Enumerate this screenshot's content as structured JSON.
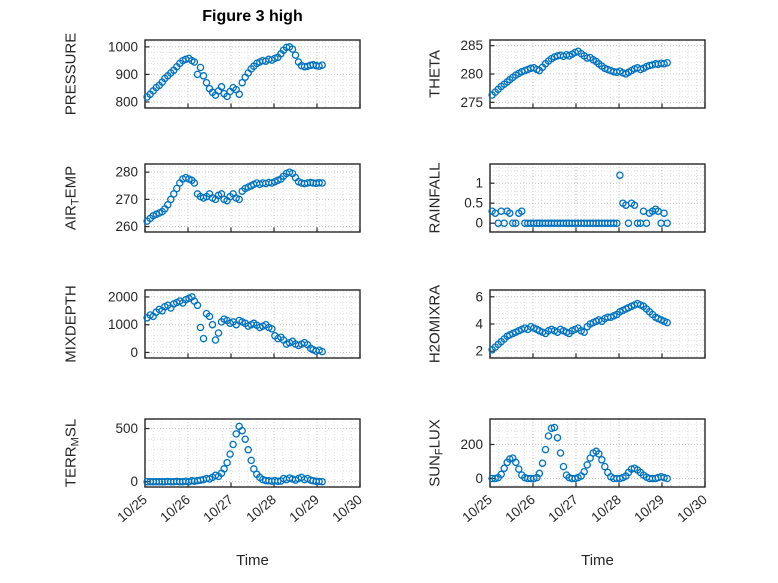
{
  "chart_data": {
    "type": "scatter",
    "title": "Figure 3 high",
    "xlabel": "Time",
    "marker": "open-circle",
    "colors": {
      "marker": "#0072BD",
      "axis": "#262626",
      "major_grid": "#c4c4c4",
      "minor_grid": "#e2e2e2",
      "tick_label": "#262626"
    },
    "xlim": [
      0,
      5
    ],
    "xticks": [
      0,
      1,
      2,
      3,
      4,
      5
    ],
    "xtick_labels": [
      "10/25",
      "10/26",
      "10/27",
      "10/28",
      "10/29",
      "10/30"
    ],
    "x_days": [
      0.05,
      0.12,
      0.19,
      0.26,
      0.33,
      0.4,
      0.46,
      0.53,
      0.6,
      0.67,
      0.74,
      0.81,
      0.88,
      0.95,
      1.02,
      1.09,
      1.15,
      1.22,
      1.29,
      1.36,
      1.43,
      1.5,
      1.57,
      1.64,
      1.71,
      1.78,
      1.84,
      1.91,
      1.98,
      2.05,
      2.12,
      2.19,
      2.26,
      2.33,
      2.4,
      2.47,
      2.53,
      2.6,
      2.67,
      2.74,
      2.81,
      2.88,
      2.95,
      3.02,
      3.09,
      3.16,
      3.22,
      3.29,
      3.36,
      3.43,
      3.5,
      3.57,
      3.64,
      3.71,
      3.78,
      3.85,
      3.91,
      3.98,
      4.05,
      4.12
    ],
    "subplots": [
      {
        "name": "PRESSURE",
        "ylabel": {
          "pre": "PRESSURE",
          "sub": "",
          "post": ""
        },
        "yticks": [
          800,
          900,
          1000
        ],
        "ylim": [
          778,
          1025
        ],
        "values": [
          818,
          828,
          840,
          852,
          860,
          872,
          885,
          895,
          905,
          915,
          928,
          940,
          950,
          955,
          958,
          950,
          945,
          900,
          925,
          895,
          870,
          848,
          835,
          825,
          840,
          855,
          830,
          820,
          838,
          852,
          845,
          828,
          870,
          890,
          905,
          920,
          930,
          940,
          945,
          950,
          948,
          955,
          952,
          958,
          962,
          975,
          988,
          998,
          1000,
          992,
          970,
          945,
          932,
          928,
          930,
          933,
          935,
          932,
          930,
          934
        ]
      },
      {
        "name": "THETA",
        "ylabel": {
          "pre": "THETA",
          "sub": "",
          "post": ""
        },
        "yticks": [
          275,
          280,
          285
        ],
        "ylim": [
          274,
          286
        ],
        "values": [
          276.3,
          276.8,
          277.3,
          277.8,
          278.2,
          278.6,
          279.0,
          279.4,
          279.8,
          280.1,
          280.4,
          280.6,
          280.8,
          281.0,
          281.1,
          280.8,
          280.6,
          281.2,
          281.8,
          282.3,
          282.7,
          283.0,
          283.2,
          283.3,
          283.1,
          283.4,
          283.2,
          283.5,
          283.8,
          284.0,
          283.6,
          283.2,
          282.8,
          282.9,
          282.5,
          282.2,
          281.8,
          281.4,
          281.0,
          280.8,
          280.6,
          280.4,
          280.3,
          280.5,
          280.2,
          280.0,
          280.3,
          280.6,
          280.9,
          281.1,
          280.8,
          281.0,
          281.3,
          281.5,
          281.6,
          281.8,
          281.7,
          281.9,
          281.8,
          282.0
        ]
      },
      {
        "name": "AIR_TEMP",
        "ylabel": {
          "pre": "AIR",
          "sub": "T",
          "post": "EMP"
        },
        "yticks": [
          260,
          270,
          280
        ],
        "ylim": [
          258,
          283
        ],
        "values": [
          262,
          263,
          264,
          264.5,
          265,
          265.5,
          266.5,
          268,
          270,
          272,
          274,
          276,
          277.5,
          278,
          277.5,
          277,
          276,
          272,
          271,
          270.5,
          271,
          272,
          270.5,
          270,
          271.5,
          272,
          270,
          269.5,
          271,
          272,
          270.5,
          270,
          273,
          274,
          274.5,
          275,
          275.5,
          276,
          275.5,
          276,
          275.8,
          276.2,
          276,
          276.5,
          277,
          277.5,
          278.5,
          279.5,
          280,
          279.5,
          278,
          276.5,
          276,
          275.8,
          276,
          276.2,
          276,
          275.9,
          276.1,
          276
        ]
      },
      {
        "name": "RAINFALL",
        "ylabel": {
          "pre": "RAINFALL",
          "sub": "",
          "post": ""
        },
        "yticks": [
          0,
          0.5,
          1
        ],
        "ylim": [
          -0.22,
          1.48
        ],
        "values": [
          0.3,
          0.25,
          0,
          0.3,
          0,
          0.3,
          0.25,
          0,
          0,
          0.25,
          0.3,
          0,
          0,
          0,
          0,
          0,
          0,
          0,
          0,
          0,
          0,
          0,
          0,
          0,
          0,
          0,
          0,
          0,
          0,
          0,
          0,
          0,
          0,
          0,
          0,
          0,
          0,
          0,
          0,
          0,
          0,
          0,
          0,
          1.2,
          0.5,
          0.45,
          0,
          0.5,
          0.45,
          0,
          0,
          0.3,
          0,
          0.25,
          0.3,
          0.35,
          0.3,
          0,
          0.25,
          0
        ]
      },
      {
        "name": "MIXDEPTH",
        "ylabel": {
          "pre": "MIXDEPTH",
          "sub": "",
          "post": ""
        },
        "yticks": [
          0,
          1000,
          2000
        ],
        "ylim": [
          -200,
          2250
        ],
        "values": [
          1250,
          1350,
          1300,
          1450,
          1550,
          1500,
          1650,
          1700,
          1600,
          1750,
          1800,
          1850,
          1780,
          1900,
          1950,
          2000,
          1850,
          1700,
          900,
          500,
          1400,
          1300,
          1000,
          450,
          700,
          1100,
          1200,
          1150,
          1050,
          1100,
          1000,
          1150,
          1100,
          1050,
          950,
          1000,
          1050,
          980,
          900,
          950,
          1000,
          900,
          850,
          600,
          500,
          550,
          450,
          300,
          350,
          400,
          300,
          250,
          300,
          350,
          280,
          150,
          100,
          50,
          80,
          30
        ]
      },
      {
        "name": "H2OMIXRA",
        "ylabel": {
          "pre": "H2OMIXRA",
          "sub": "",
          "post": ""
        },
        "yticks": [
          2,
          4,
          6
        ],
        "ylim": [
          1.5,
          6.5
        ],
        "values": [
          2.1,
          2.3,
          2.5,
          2.7,
          2.9,
          3.1,
          3.2,
          3.3,
          3.4,
          3.5,
          3.6,
          3.7,
          3.6,
          3.8,
          3.7,
          3.6,
          3.5,
          3.4,
          3.3,
          3.5,
          3.6,
          3.5,
          3.4,
          3.6,
          3.5,
          3.4,
          3.3,
          3.5,
          3.6,
          3.7,
          3.5,
          3.4,
          3.8,
          4.0,
          4.1,
          4.2,
          4.3,
          4.2,
          4.4,
          4.5,
          4.5,
          4.6,
          4.7,
          4.9,
          5.0,
          5.1,
          5.2,
          5.3,
          5.4,
          5.5,
          5.4,
          5.3,
          5.1,
          4.9,
          4.7,
          4.5,
          4.4,
          4.3,
          4.2,
          4.1
        ]
      },
      {
        "name": "TERR_MSL",
        "ylabel": {
          "pre": "TERR",
          "sub": "M",
          "post": "SL"
        },
        "yticks": [
          0,
          500
        ],
        "ylim": [
          -50,
          590
        ],
        "values": [
          0,
          0,
          0,
          0,
          0,
          0,
          0,
          2,
          0,
          0,
          3,
          0,
          0,
          5,
          0,
          8,
          5,
          10,
          15,
          20,
          30,
          25,
          40,
          60,
          50,
          80,
          120,
          180,
          260,
          350,
          450,
          520,
          480,
          400,
          300,
          200,
          120,
          70,
          40,
          20,
          10,
          8,
          5,
          10,
          4,
          6,
          30,
          20,
          35,
          25,
          15,
          30,
          40,
          20,
          30,
          15,
          8,
          4,
          2,
          0
        ]
      },
      {
        "name": "SUN_FLUX",
        "ylabel": {
          "pre": "SUN",
          "sub": "F",
          "post": "LUX"
        },
        "yticks": [
          0,
          200
        ],
        "ylim": [
          -50,
          350
        ],
        "values": [
          0,
          0,
          5,
          25,
          60,
          95,
          115,
          120,
          95,
          55,
          20,
          5,
          0,
          0,
          0,
          5,
          30,
          90,
          170,
          250,
          295,
          300,
          240,
          150,
          70,
          20,
          5,
          0,
          0,
          5,
          15,
          40,
          80,
          120,
          150,
          160,
          145,
          110,
          70,
          35,
          10,
          0,
          0,
          0,
          5,
          15,
          35,
          55,
          60,
          50,
          35,
          20,
          8,
          0,
          0,
          0,
          5,
          10,
          5,
          0
        ]
      }
    ]
  }
}
